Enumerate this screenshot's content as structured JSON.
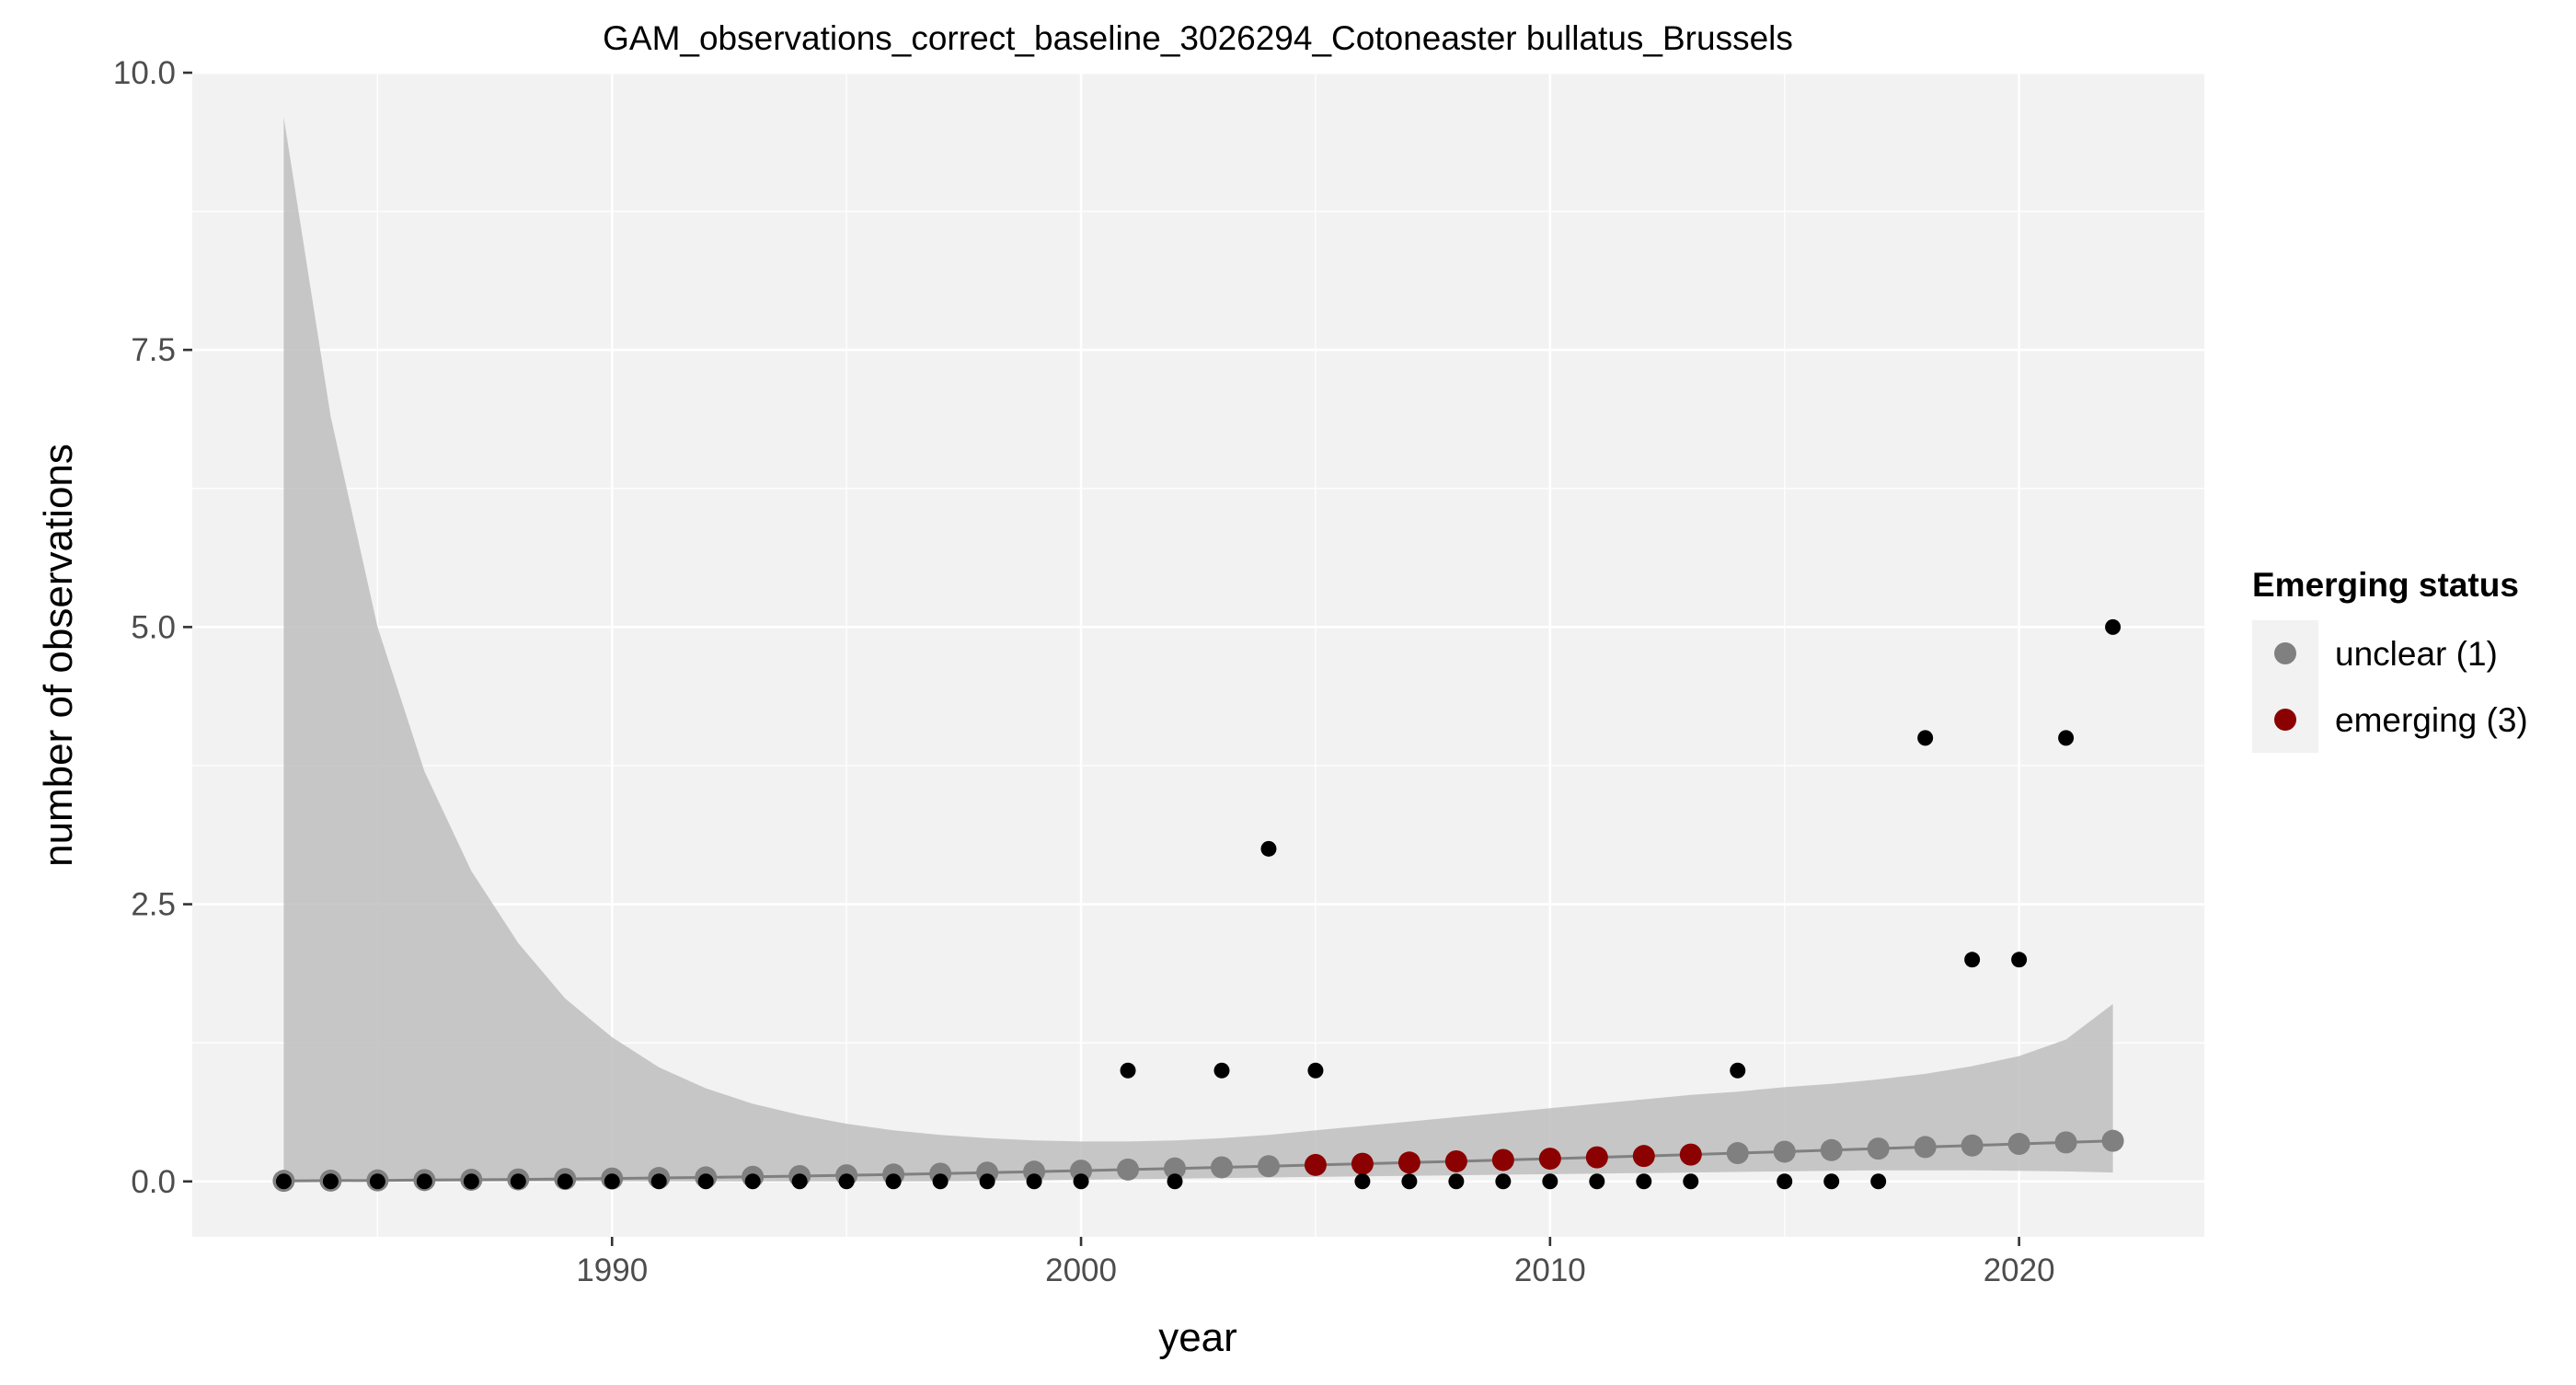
{
  "chart_data": {
    "type": "scatter",
    "title": "GAM_observations_correct_baseline_3026294_Cotoneaster bullatus_Brussels",
    "xlabel": "year",
    "ylabel": "number of observations",
    "xlim": [
      1981.05,
      2023.95
    ],
    "ylim": [
      -0.5,
      10.0
    ],
    "x_ticks": [
      1990,
      2000,
      2010,
      2020
    ],
    "y_ticks": [
      0.0,
      2.5,
      5.0,
      7.5,
      10.0
    ],
    "y_tick_labels": [
      "0.0",
      "2.5",
      "5.0",
      "7.5",
      "10.0"
    ],
    "grid": true,
    "legend": {
      "title": "Emerging status",
      "position": "right",
      "entries": [
        {
          "label": "unclear (1)",
          "color": "#808080"
        },
        {
          "label": "emerging (3)",
          "color": "#8B0000"
        }
      ]
    },
    "colors": {
      "panel": "#F2F2F2",
      "grid": "#FFFFFF",
      "ribbon": "#BEBEBE",
      "fit_line": "#808080",
      "observed": "#000000",
      "unclear": "#808080",
      "emerging": "#8B0000"
    },
    "observed": {
      "x": [
        1983,
        1984,
        1985,
        1986,
        1987,
        1988,
        1989,
        1990,
        1991,
        1992,
        1993,
        1994,
        1995,
        1996,
        1997,
        1998,
        1999,
        2000,
        2001,
        2002,
        2003,
        2004,
        2005,
        2006,
        2007,
        2008,
        2009,
        2010,
        2011,
        2012,
        2013,
        2014,
        2015,
        2016,
        2017,
        2018,
        2019,
        2020,
        2021,
        2022
      ],
      "y": [
        0,
        0,
        0,
        0,
        0,
        0,
        0,
        0,
        0,
        0,
        0,
        0,
        0,
        0,
        0,
        0,
        0,
        0,
        1,
        0,
        1,
        3,
        1,
        0,
        0,
        0,
        0,
        0,
        0,
        0,
        0,
        1,
        0,
        0,
        0,
        4,
        2,
        2,
        4,
        5
      ]
    },
    "fit": {
      "x": [
        1983,
        1984,
        1985,
        1986,
        1987,
        1988,
        1989,
        1990,
        1991,
        1992,
        1993,
        1994,
        1995,
        1996,
        1997,
        1998,
        1999,
        2000,
        2001,
        2002,
        2003,
        2004,
        2005,
        2006,
        2007,
        2008,
        2009,
        2010,
        2011,
        2012,
        2013,
        2014,
        2015,
        2016,
        2017,
        2018,
        2019,
        2020,
        2021,
        2022
      ],
      "y": [
        0.005,
        0.007,
        0.009,
        0.012,
        0.015,
        0.018,
        0.022,
        0.026,
        0.031,
        0.036,
        0.042,
        0.048,
        0.055,
        0.062,
        0.07,
        0.079,
        0.088,
        0.097,
        0.107,
        0.117,
        0.127,
        0.137,
        0.148,
        0.159,
        0.17,
        0.181,
        0.193,
        0.205,
        0.217,
        0.229,
        0.242,
        0.255,
        0.268,
        0.282,
        0.296,
        0.31,
        0.324,
        0.338,
        0.352,
        0.366
      ],
      "lower": [
        0,
        0,
        0,
        0,
        0,
        0,
        0,
        0,
        0,
        0,
        0,
        0,
        0,
        0,
        0,
        0.005,
        0.01,
        0.015,
        0.02,
        0.025,
        0.03,
        0.035,
        0.04,
        0.045,
        0.05,
        0.055,
        0.06,
        0.065,
        0.07,
        0.075,
        0.08,
        0.085,
        0.09,
        0.095,
        0.1,
        0.1,
        0.1,
        0.095,
        0.09,
        0.08
      ],
      "upper": [
        9.6,
        6.9,
        5.0,
        3.7,
        2.8,
        2.15,
        1.65,
        1.3,
        1.03,
        0.84,
        0.7,
        0.6,
        0.52,
        0.46,
        0.42,
        0.39,
        0.37,
        0.36,
        0.36,
        0.37,
        0.39,
        0.42,
        0.46,
        0.5,
        0.54,
        0.58,
        0.62,
        0.66,
        0.7,
        0.74,
        0.78,
        0.81,
        0.85,
        0.88,
        0.92,
        0.97,
        1.04,
        1.13,
        1.28,
        1.6
      ],
      "status": [
        "unclear",
        "unclear",
        "unclear",
        "unclear",
        "unclear",
        "unclear",
        "unclear",
        "unclear",
        "unclear",
        "unclear",
        "unclear",
        "unclear",
        "unclear",
        "unclear",
        "unclear",
        "unclear",
        "unclear",
        "unclear",
        "unclear",
        "unclear",
        "unclear",
        "unclear",
        "emerging",
        "emerging",
        "emerging",
        "emerging",
        "emerging",
        "emerging",
        "emerging",
        "emerging",
        "emerging",
        "unclear",
        "unclear",
        "unclear",
        "unclear",
        "unclear",
        "unclear",
        "unclear",
        "unclear",
        "unclear"
      ]
    }
  }
}
